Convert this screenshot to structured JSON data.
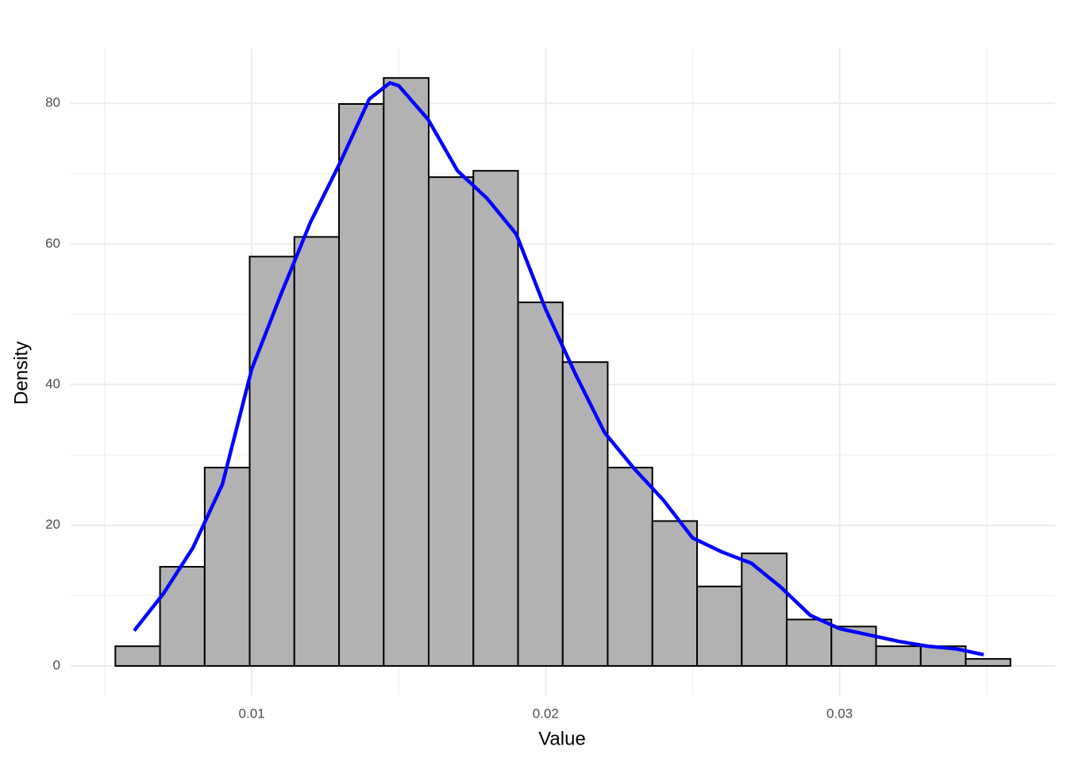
{
  "chart_data": {
    "type": "histogram",
    "xlabel": "Value",
    "ylabel": "Density",
    "bins": [
      0.00536,
      0.00688,
      0.0084,
      0.00993,
      0.01145,
      0.01297,
      0.01449,
      0.01602,
      0.01754,
      0.01906,
      0.02058,
      0.02211,
      0.02363,
      0.02515,
      0.02667,
      0.0282,
      0.02972,
      0.03124,
      0.03276,
      0.03429,
      0.03581
    ],
    "values": [
      2.8,
      14.1,
      28.2,
      58.2,
      61.0,
      79.9,
      83.6,
      69.5,
      70.4,
      51.7,
      43.2,
      28.2,
      20.6,
      11.3,
      16.0,
      6.6,
      5.6,
      2.8,
      2.8,
      1.0
    ],
    "color": "#b2b2b2",
    "edgecolor": "#000000",
    "density": {
      "color": "#0000ff",
      "x": [
        0.006,
        0.007,
        0.008,
        0.009,
        0.01,
        0.011,
        0.012,
        0.013,
        0.014,
        0.0147,
        0.015,
        0.016,
        0.017,
        0.018,
        0.019,
        0.02,
        0.021,
        0.022,
        0.023,
        0.024,
        0.025,
        0.026,
        0.027,
        0.028,
        0.029,
        0.03,
        0.031,
        0.032,
        0.033,
        0.034,
        0.0349
      ],
      "y": [
        5.0,
        10.3,
        16.8,
        25.8,
        42.2,
        52.9,
        63.1,
        71.5,
        80.6,
        82.9,
        82.5,
        77.7,
        70.4,
        66.5,
        61.4,
        50.7,
        41.6,
        33.2,
        28.1,
        23.6,
        18.2,
        16.2,
        14.6,
        11.2,
        7.2,
        5.3,
        4.4,
        3.5,
        2.8,
        2.4,
        1.6
      ]
    },
    "xlim": [
      0.00384,
      0.03733
    ],
    "ylim": [
      -4.18,
      87.8
    ],
    "xticks": [
      0.01,
      0.02,
      0.03
    ],
    "yticks": [
      0,
      20,
      40,
      60,
      80
    ],
    "grid": true
  }
}
